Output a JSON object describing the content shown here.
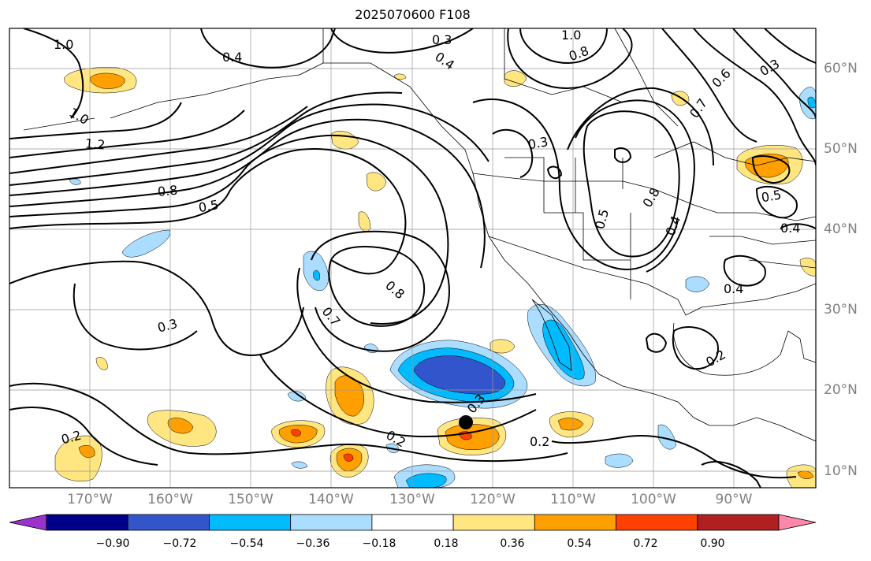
{
  "title": "2025070600 F108",
  "lat_labels": [
    "60°N",
    "50°N",
    "40°N",
    "30°N",
    "20°N",
    "10°N"
  ],
  "lon_labels": [
    "170°W",
    "160°W",
    "150°W",
    "140°W",
    "130°W",
    "120°W",
    "110°W",
    "100°W",
    "90°W"
  ],
  "colorbar": {
    "colors": [
      "#9933cc",
      "#000088",
      "#3355cc",
      "#00bbff",
      "#aaddff",
      "#ffffff",
      "#ffe680",
      "#ffa000",
      "#ff4000",
      "#b02020",
      "#ff88aa"
    ],
    "tick_labels": [
      "−0.90",
      "−0.72",
      "−0.54",
      "−0.36",
      "−0.18",
      "0.18",
      "0.36",
      "0.54",
      "0.72",
      "0.90"
    ]
  },
  "contour_labels": [
    "1.0",
    "0.3",
    "1.0",
    "0.4",
    "0.4",
    "0.8",
    "0.3",
    "0.6",
    "1.0",
    "0.7",
    "1.2",
    "0.3",
    "0.8",
    "0.5",
    "0.5",
    "0.8",
    "0.5",
    "0.4",
    "0.4",
    "0.8",
    "0.7",
    "0.3",
    "0.4",
    "0.3",
    "0.2",
    "0.2",
    "0.2",
    "0.2"
  ],
  "marker": "storm-center-dot"
}
